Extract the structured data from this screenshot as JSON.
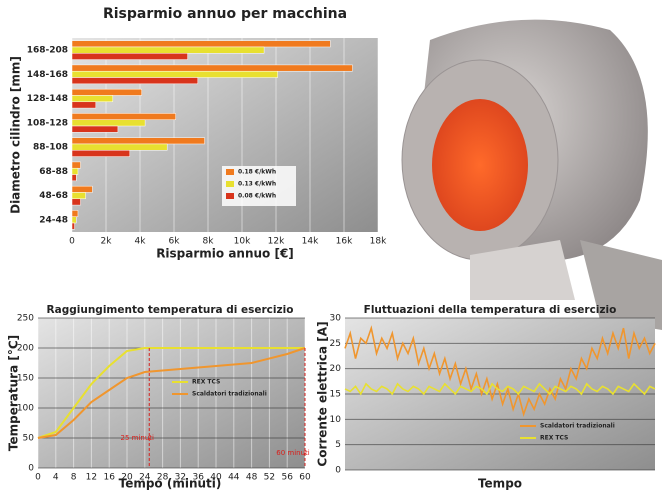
{
  "chart_data": [
    {
      "type": "bar",
      "orientation": "horizontal",
      "title": "Risparmio annuo per macchina",
      "x_label": "Risparmio annuo [€]",
      "y_label": "Diametro cilindro [mm]",
      "categories": [
        "168-208",
        "148-168",
        "128-148",
        "108-128",
        "88-108",
        "68-88",
        "48-68",
        "24-48"
      ],
      "series": [
        {
          "name": "0.18 €/kWh",
          "color": "#f07a1e",
          "values": [
            15200,
            16500,
            4100,
            6100,
            7800,
            500,
            1200,
            350
          ]
        },
        {
          "name": "0.13 €/kWh",
          "color": "#e8e030",
          "values": [
            11300,
            12100,
            2400,
            4300,
            5600,
            350,
            800,
            250
          ]
        },
        {
          "name": "0.08 €/kWh",
          "color": "#d8341c",
          "values": [
            6800,
            7400,
            1400,
            2700,
            3400,
            250,
            500,
            150
          ]
        }
      ],
      "xlim": [
        0,
        18000
      ],
      "xticks": [
        0,
        {
          "value": 2000,
          "label": "2k"
        },
        {
          "value": 4000,
          "label": "4k"
        },
        {
          "value": 6000,
          "label": "6k"
        },
        {
          "value": 8000,
          "label": "8k"
        },
        {
          "value": 10000,
          "label": "10k"
        },
        {
          "value": 12000,
          "label": "12k"
        },
        {
          "value": 14000,
          "label": "14k"
        },
        {
          "value": 16000,
          "label": "16k"
        },
        {
          "value": 18000,
          "label": "18k"
        }
      ],
      "grid": true,
      "legend": "center right"
    },
    {
      "type": "line",
      "title": "Raggiungimento temperatura di esercizio",
      "x_label": "Tempo (minuti)",
      "y_label": "Temperatura [°C]",
      "series": [
        {
          "name": "REX TCS",
          "color": "#e8e030",
          "x": [
            0,
            4,
            8,
            12,
            16,
            20,
            24,
            60
          ],
          "values": [
            50,
            60,
            100,
            140,
            170,
            195,
            200,
            200
          ]
        },
        {
          "name": "Scaldatori tradizionali",
          "color": "#f0962e",
          "x": [
            0,
            4,
            8,
            12,
            16,
            20,
            24,
            32,
            40,
            48,
            56,
            60
          ],
          "values": [
            50,
            55,
            80,
            110,
            130,
            150,
            160,
            165,
            170,
            175,
            190,
            200
          ]
        }
      ],
      "xlim": [
        0,
        60
      ],
      "xticks": [
        0,
        4,
        8,
        12,
        16,
        20,
        24,
        28,
        32,
        36,
        40,
        44,
        48,
        52,
        56,
        60
      ],
      "ylim": [
        0,
        250
      ],
      "yticks": [
        0,
        50,
        100,
        150,
        200,
        250
      ],
      "annotations": [
        {
          "text": "25 minuti",
          "x": 25
        },
        {
          "text": "60 minuti",
          "x": 60
        }
      ],
      "grid": true,
      "legend": "center"
    },
    {
      "type": "line",
      "title": "Fluttuazioni della temperatura di esercizio",
      "x_label": "Tempo",
      "y_label": "Corrente elettrica [A]",
      "series": [
        {
          "name": "Scaldatori tradizionali",
          "color": "#f0962e",
          "values": [
            24,
            27,
            22,
            26,
            25,
            28,
            23,
            26,
            24,
            27,
            22,
            25,
            23,
            26,
            21,
            24,
            20,
            23,
            19,
            22,
            18,
            21,
            17,
            20,
            16,
            19,
            15,
            18,
            14,
            17,
            13,
            16,
            12,
            15,
            11,
            14,
            12,
            15,
            13,
            16,
            14,
            18,
            16,
            20,
            18,
            22,
            20,
            24,
            22,
            26,
            23,
            27,
            24,
            28,
            22,
            27,
            24,
            26,
            23,
            25
          ]
        },
        {
          "name": "REX TCS",
          "color": "#e8e030",
          "values": [
            16,
            15.5,
            16.5,
            15,
            17,
            16,
            15.5,
            16.5,
            16,
            15,
            17,
            16,
            15.5,
            16.5,
            16,
            15,
            16.5,
            16,
            15.5,
            17,
            16,
            15,
            16.5,
            16,
            15.5,
            16.5,
            16,
            15,
            17,
            16,
            15.5,
            16.5,
            16,
            15,
            16.5,
            16,
            15.5,
            17,
            16,
            15,
            16.5,
            16,
            15.5,
            16.5,
            16,
            15,
            17,
            16,
            15.5,
            16.5,
            16,
            15,
            16.5,
            16,
            15.5,
            17,
            16,
            15,
            16.5,
            16
          ]
        }
      ],
      "ylim": [
        0,
        30
      ],
      "yticks": [
        0,
        5,
        10,
        15,
        20,
        25,
        30
      ],
      "grid": true,
      "legend": "lower right"
    }
  ]
}
